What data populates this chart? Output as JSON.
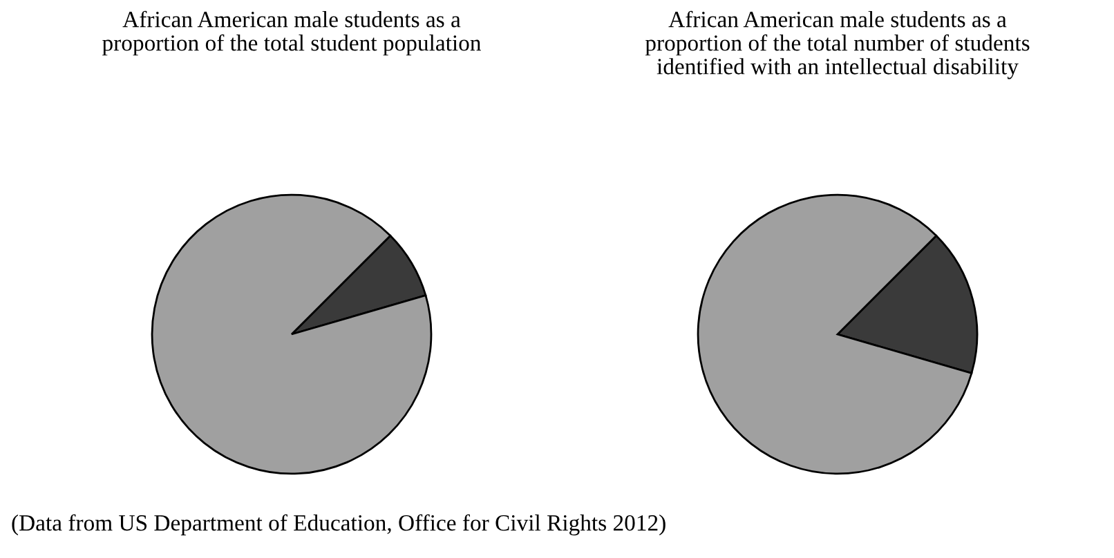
{
  "chart_data": [
    {
      "type": "pie",
      "title": "African American male students as a proportion of the total student population",
      "categories": [
        null,
        null
      ],
      "values": [
        8,
        92
      ],
      "colors": [
        "#3a3a3a",
        "#a0a0a0"
      ],
      "annotations": [
        "(Data from US Department of Education, Office for Civil Rights 2012)"
      ]
    },
    {
      "type": "pie",
      "title": "African American male students as a proportion of the total number of students identified with an intellectual disability",
      "categories": [
        null,
        null
      ],
      "values": [
        17,
        83
      ],
      "colors": [
        "#3a3a3a",
        "#a0a0a0"
      ]
    }
  ]
}
